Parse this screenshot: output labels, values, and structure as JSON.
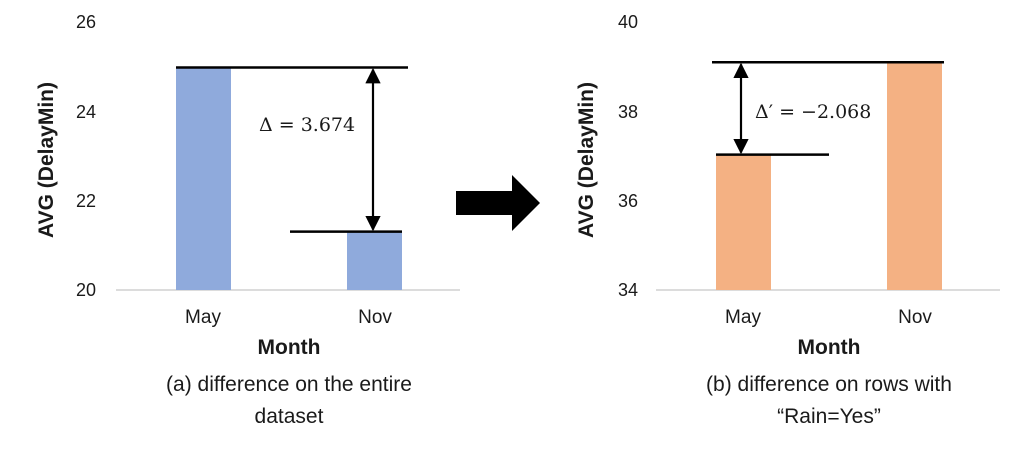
{
  "chart_data": [
    {
      "type": "bar",
      "xlabel": "Month",
      "ylabel": "AVG (DelayMin)",
      "categories": [
        "May",
        "Nov"
      ],
      "values": [
        24.98,
        21.306
      ],
      "ylim": [
        20,
        26
      ],
      "yticks": [
        "20",
        "22",
        "24",
        "26"
      ],
      "grid": false,
      "color": "#8faadc",
      "annotation": "Δ = 3.674",
      "caption": [
        "(a) difference on the entire",
        "dataset"
      ]
    },
    {
      "type": "bar",
      "xlabel": "Month",
      "ylabel": "AVG (DelayMin)",
      "categories": [
        "May",
        "Nov"
      ],
      "values": [
        37.03,
        39.098
      ],
      "ylim": [
        34,
        40
      ],
      "yticks": [
        "34",
        "36",
        "38",
        "40"
      ],
      "grid": false,
      "color": "#f4b183",
      "annotation": "Δ′ = −2.068",
      "caption": [
        "(b) difference on rows with",
        "“Rain=Yes”"
      ]
    }
  ],
  "arrow_icon": "right-arrow-icon"
}
